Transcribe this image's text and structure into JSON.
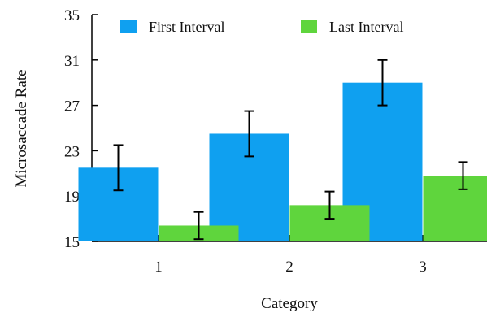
{
  "chart_data": {
    "type": "bar",
    "title": "",
    "xlabel": "Category",
    "ylabel": "Microsaccade Rate",
    "categories": [
      "1",
      "2",
      "3"
    ],
    "ylim": [
      15,
      35
    ],
    "yticks": [
      "15",
      "19",
      "23",
      "27",
      "31",
      "35"
    ],
    "grid": false,
    "legend_position": "top",
    "series": [
      {
        "name": "First Interval",
        "color": "#0fa0f0",
        "values": [
          21.5,
          24.5,
          29.0
        ],
        "error": [
          2.0,
          2.0,
          2.0
        ]
      },
      {
        "name": "Last Interval",
        "color": "#5fd53d",
        "values": [
          16.4,
          18.2,
          20.8
        ],
        "error": [
          1.2,
          1.2,
          1.2
        ]
      }
    ]
  }
}
